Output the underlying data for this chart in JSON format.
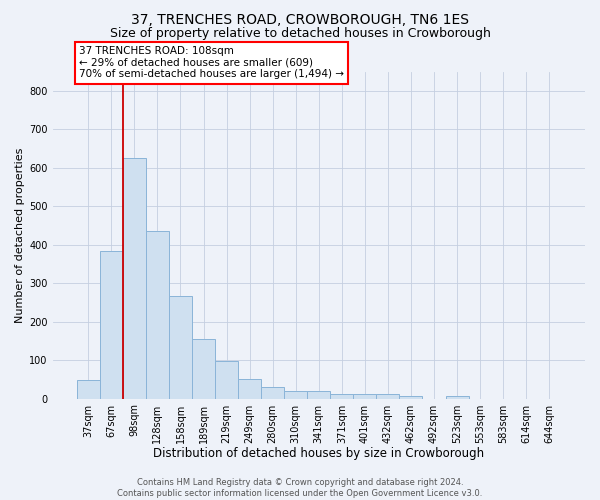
{
  "title": "37, TRENCHES ROAD, CROWBOROUGH, TN6 1ES",
  "subtitle": "Size of property relative to detached houses in Crowborough",
  "xlabel": "Distribution of detached houses by size in Crowborough",
  "ylabel": "Number of detached properties",
  "categories": [
    "37sqm",
    "67sqm",
    "98sqm",
    "128sqm",
    "158sqm",
    "189sqm",
    "219sqm",
    "249sqm",
    "280sqm",
    "310sqm",
    "341sqm",
    "371sqm",
    "401sqm",
    "432sqm",
    "462sqm",
    "492sqm",
    "523sqm",
    "553sqm",
    "583sqm",
    "614sqm",
    "644sqm"
  ],
  "values": [
    48,
    383,
    625,
    437,
    268,
    155,
    97,
    52,
    30,
    20,
    20,
    12,
    12,
    12,
    7,
    0,
    8,
    0,
    0,
    0,
    0
  ],
  "bar_color": "#cfe0f0",
  "bar_edgecolor": "#8ab4d8",
  "bar_linewidth": 0.7,
  "grid_color": "#c5cfe0",
  "background_color": "#eef2f9",
  "ylim": [
    0,
    850
  ],
  "yticks": [
    0,
    100,
    200,
    300,
    400,
    500,
    600,
    700,
    800
  ],
  "redline_x": 1.5,
  "redline_color": "#cc0000",
  "annotation_line1": "37 TRENCHES ROAD: 108sqm",
  "annotation_line2": "← 29% of detached houses are smaller (609)",
  "annotation_line3": "70% of semi-detached houses are larger (1,494) →",
  "footer_line1": "Contains HM Land Registry data © Crown copyright and database right 2024.",
  "footer_line2": "Contains public sector information licensed under the Open Government Licence v3.0.",
  "title_fontsize": 10,
  "subtitle_fontsize": 9,
  "xlabel_fontsize": 8.5,
  "ylabel_fontsize": 8,
  "tick_fontsize": 7,
  "annotation_fontsize": 7.5,
  "footer_fontsize": 6
}
